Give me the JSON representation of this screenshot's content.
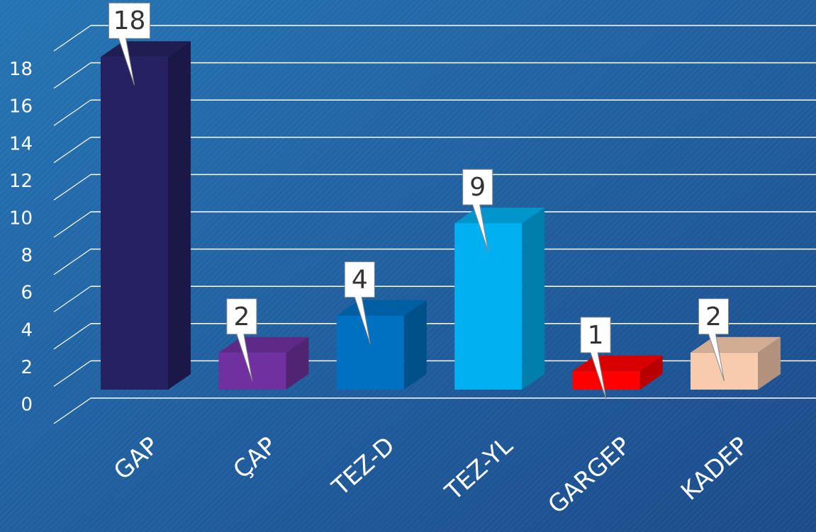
{
  "chart_data": {
    "type": "bar3d",
    "categories": [
      "GAP",
      "ÇAP",
      "TEZ-D",
      "TEZ-YL",
      "GARGEP",
      "KADEP"
    ],
    "values": [
      18,
      2,
      4,
      9,
      1,
      2
    ],
    "colors": [
      "#262262",
      "#7030a0",
      "#0070c0",
      "#00b0f0",
      "#ff0000",
      "#f8cbad"
    ],
    "ylim": [
      0,
      20
    ],
    "yticks": [
      0,
      2,
      4,
      6,
      8,
      10,
      12,
      14,
      16,
      18
    ],
    "grid": true
  }
}
